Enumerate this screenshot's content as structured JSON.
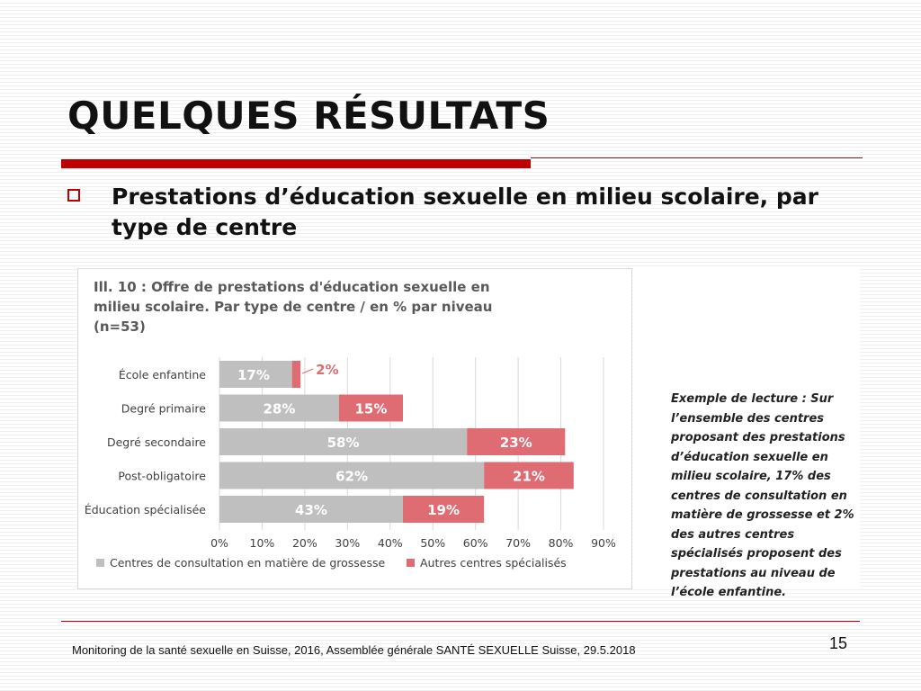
{
  "slide": {
    "title": "QUELQUES RÉSULTATS",
    "bullet": "Prestations d’éducation sexuelle en milieu scolaire, par type de centre",
    "reading_note": "Exemple de lecture : Sur l’ensemble des centres proposant des prestations d’éducation sexuelle en milieu scolaire, 17% des centres de consultation en matière de grossesse et 2% des autres centres spécialisés proposent des prestations au niveau de l’école enfantine.",
    "footer": "Monitoring de la santé sexuelle en Suisse, 2016, Assemblée générale SANTÉ SEXUELLE Suisse, 29.5.2018",
    "page_number": "15"
  },
  "colors": {
    "accent": "#c00000",
    "series_grey": "#bfbfbf",
    "series_red": "#e06c73",
    "annotation_red": "#e06c73"
  },
  "chart_data": {
    "type": "bar",
    "orientation": "horizontal",
    "stacked": true,
    "title_lines": [
      "Ill. 10 : Offre de prestations d'éducation sexuelle en",
      "milieu scolaire. Par type de centre / en % par niveau",
      "(n=53)"
    ],
    "categories": [
      "École enfantine",
      "Degré primaire",
      "Degré secondaire",
      "Post-obligatoire",
      "Éducation spécialisée"
    ],
    "series": [
      {
        "name": "Centres de consultation en matière de grossesse",
        "values": [
          17,
          28,
          58,
          62,
          43
        ],
        "labels": [
          "17%",
          "28%",
          "58%",
          "62%",
          "43%"
        ]
      },
      {
        "name": "Autres centres spécialisés",
        "values": [
          2,
          15,
          23,
          21,
          19
        ],
        "labels": [
          "2%",
          "15%",
          "23%",
          "21%",
          "19%"
        ]
      }
    ],
    "xlim": [
      0,
      90
    ],
    "xticks": [
      0,
      10,
      20,
      30,
      40,
      50,
      60,
      70,
      80,
      90
    ],
    "xtick_labels": [
      "0%",
      "10%",
      "20%",
      "30%",
      "40%",
      "50%",
      "60%",
      "70%",
      "80%",
      "90%"
    ],
    "grid": true,
    "legend": "bottom"
  }
}
